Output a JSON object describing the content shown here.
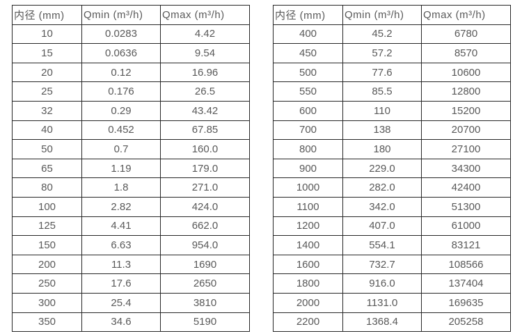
{
  "colors": {
    "background": "#ffffff",
    "border": "#262626",
    "text": "#595959"
  },
  "tables": [
    {
      "name": "flow-spec-table-small-diameters",
      "headers": [
        "内径 (mm)",
        "Qmin (m³/h)",
        "Qmax (m³/h)"
      ],
      "rows": [
        [
          "10",
          "0.0283",
          "4.42"
        ],
        [
          "15",
          "0.0636",
          "9.54"
        ],
        [
          "20",
          "0.12",
          "16.96"
        ],
        [
          "25",
          "0.176",
          "26.5"
        ],
        [
          "32",
          "0.29",
          "43.42"
        ],
        [
          "40",
          "0.452",
          "67.85"
        ],
        [
          "50",
          "0.7",
          "160.0"
        ],
        [
          "65",
          "1.19",
          "179.0"
        ],
        [
          "80",
          "1.8",
          "271.0"
        ],
        [
          "100",
          "2.82",
          "424.0"
        ],
        [
          "125",
          "4.41",
          "662.0"
        ],
        [
          "150",
          "6.63",
          "954.0"
        ],
        [
          "200",
          "11.3",
          "1690"
        ],
        [
          "250",
          "17.6",
          "2650"
        ],
        [
          "300",
          "25.4",
          "3810"
        ],
        [
          "350",
          "34.6",
          "5190"
        ]
      ]
    },
    {
      "name": "flow-spec-table-large-diameters",
      "headers": [
        "内径 (mm)",
        "Qmin (m³/h)",
        "Qmax (m³/h)"
      ],
      "rows": [
        [
          "400",
          "45.2",
          "6780"
        ],
        [
          "450",
          "57.2",
          "8570"
        ],
        [
          "500",
          "77.6",
          "10600"
        ],
        [
          "550",
          "85.5",
          "12800"
        ],
        [
          "600",
          "110",
          "15200"
        ],
        [
          "700",
          "138",
          "20700"
        ],
        [
          "800",
          "180",
          "27100"
        ],
        [
          "900",
          "229.0",
          "34300"
        ],
        [
          "1000",
          "282.0",
          "42400"
        ],
        [
          "1100",
          "342.0",
          "51300"
        ],
        [
          "1200",
          "407.0",
          "61000"
        ],
        [
          "1400",
          "554.1",
          "83121"
        ],
        [
          "1600",
          "732.7",
          "108566"
        ],
        [
          "1800",
          "916.0",
          "137404"
        ],
        [
          "2000",
          "1131.0",
          "169635"
        ],
        [
          "2200",
          "1368.4",
          "205258"
        ]
      ]
    }
  ]
}
